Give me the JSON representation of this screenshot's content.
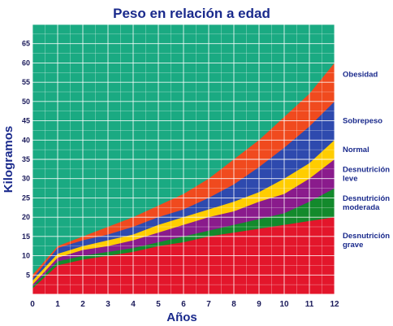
{
  "chart_data": {
    "type": "area",
    "title": "Peso en relación a edad",
    "xlabel": "Años",
    "ylabel": "Kilogramos",
    "x": [
      0,
      1,
      2,
      3,
      4,
      5,
      6,
      7,
      8,
      9,
      10,
      11,
      12
    ],
    "xlim": [
      0,
      12
    ],
    "ylim": [
      0,
      70
    ],
    "yticks": [
      5,
      10,
      15,
      20,
      25,
      30,
      35,
      40,
      45,
      50,
      55,
      60,
      65
    ],
    "grid": true,
    "legend_position": "right",
    "background_color": "#1aaa82",
    "grid_color": "#ffffff",
    "series": [
      {
        "name": "Desnutrición grave",
        "color": "#e3162b",
        "values": [
          1.5,
          7.5,
          9,
          10,
          11,
          12.5,
          13.5,
          15,
          16,
          17,
          18,
          19,
          20
        ]
      },
      {
        "name": "Desnutrición moderada",
        "color": "#138a2c",
        "values": [
          2,
          8.5,
          10,
          11,
          12,
          13.5,
          15,
          16.5,
          18,
          19.5,
          21,
          24,
          27.5
        ]
      },
      {
        "name": "Desnutrición leve",
        "color": "#8a1b8c",
        "values": [
          2.5,
          9.5,
          11.5,
          12.5,
          14,
          16,
          18,
          20,
          21.5,
          24,
          26,
          30,
          35
        ]
      },
      {
        "name": "Normal",
        "color": "#ffcd00",
        "values": [
          3.5,
          10.5,
          12.5,
          14,
          15.5,
          18,
          20,
          22,
          24,
          26.5,
          30,
          34,
          40
        ]
      },
      {
        "name": "Sobrepeso",
        "color": "#2e4aae",
        "values": [
          4,
          12,
          14,
          15.5,
          17.5,
          20,
          22,
          25,
          28.5,
          33,
          38,
          43.5,
          50
        ]
      },
      {
        "name": "Obesidad",
        "color": "#f04a1e",
        "values": [
          5,
          12.5,
          15,
          17.5,
          20,
          23,
          26,
          30,
          35,
          40,
          46,
          52,
          60
        ]
      }
    ]
  }
}
